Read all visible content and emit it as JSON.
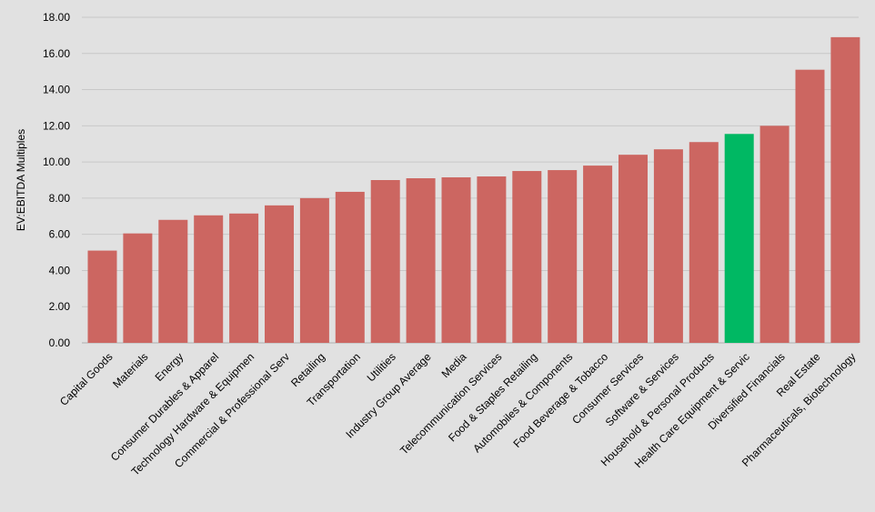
{
  "chart_data": {
    "type": "bar",
    "title": "",
    "xlabel": "",
    "ylabel": "EV:EBITDA Multiples",
    "ylim": [
      0,
      18
    ],
    "yticks": [
      "0.00",
      "2.00",
      "4.00",
      "6.00",
      "8.00",
      "10.00",
      "12.00",
      "14.00",
      "16.00",
      "18.00"
    ],
    "grid": true,
    "legend": "none",
    "colors": {
      "default": "#cc6661",
      "highlight": "#00b863",
      "grid": "#c8c8c8",
      "background": "#e1e1e1"
    },
    "highlight_category": "Health Care Equipment & Servic",
    "categories": [
      "Capital Goods",
      "Materials",
      "Energy",
      "Consumer Durables & Apparel",
      "Technology Hardware & Equipmen",
      "Commercial & Professional Serv",
      "Retailing",
      "Transportation",
      "Utilities",
      "Industry Group Average",
      "Media",
      "Telecommunication Services",
      "Food & Staples Retailing",
      "Automobiles & Components",
      "Food Beverage & Tobacco",
      "Consumer Services",
      "Software & Services",
      "Household & Personal Products",
      "Health Care Equipment & Servic",
      "Diversified Financials",
      "Real Estate",
      "Pharmaceuticals, Biotechnology"
    ],
    "values": [
      5.1,
      6.05,
      6.8,
      7.05,
      7.15,
      7.6,
      8.0,
      8.35,
      9.0,
      9.1,
      9.15,
      9.2,
      9.5,
      9.55,
      9.8,
      10.4,
      10.7,
      11.1,
      11.55,
      12.0,
      15.1,
      16.9
    ]
  }
}
